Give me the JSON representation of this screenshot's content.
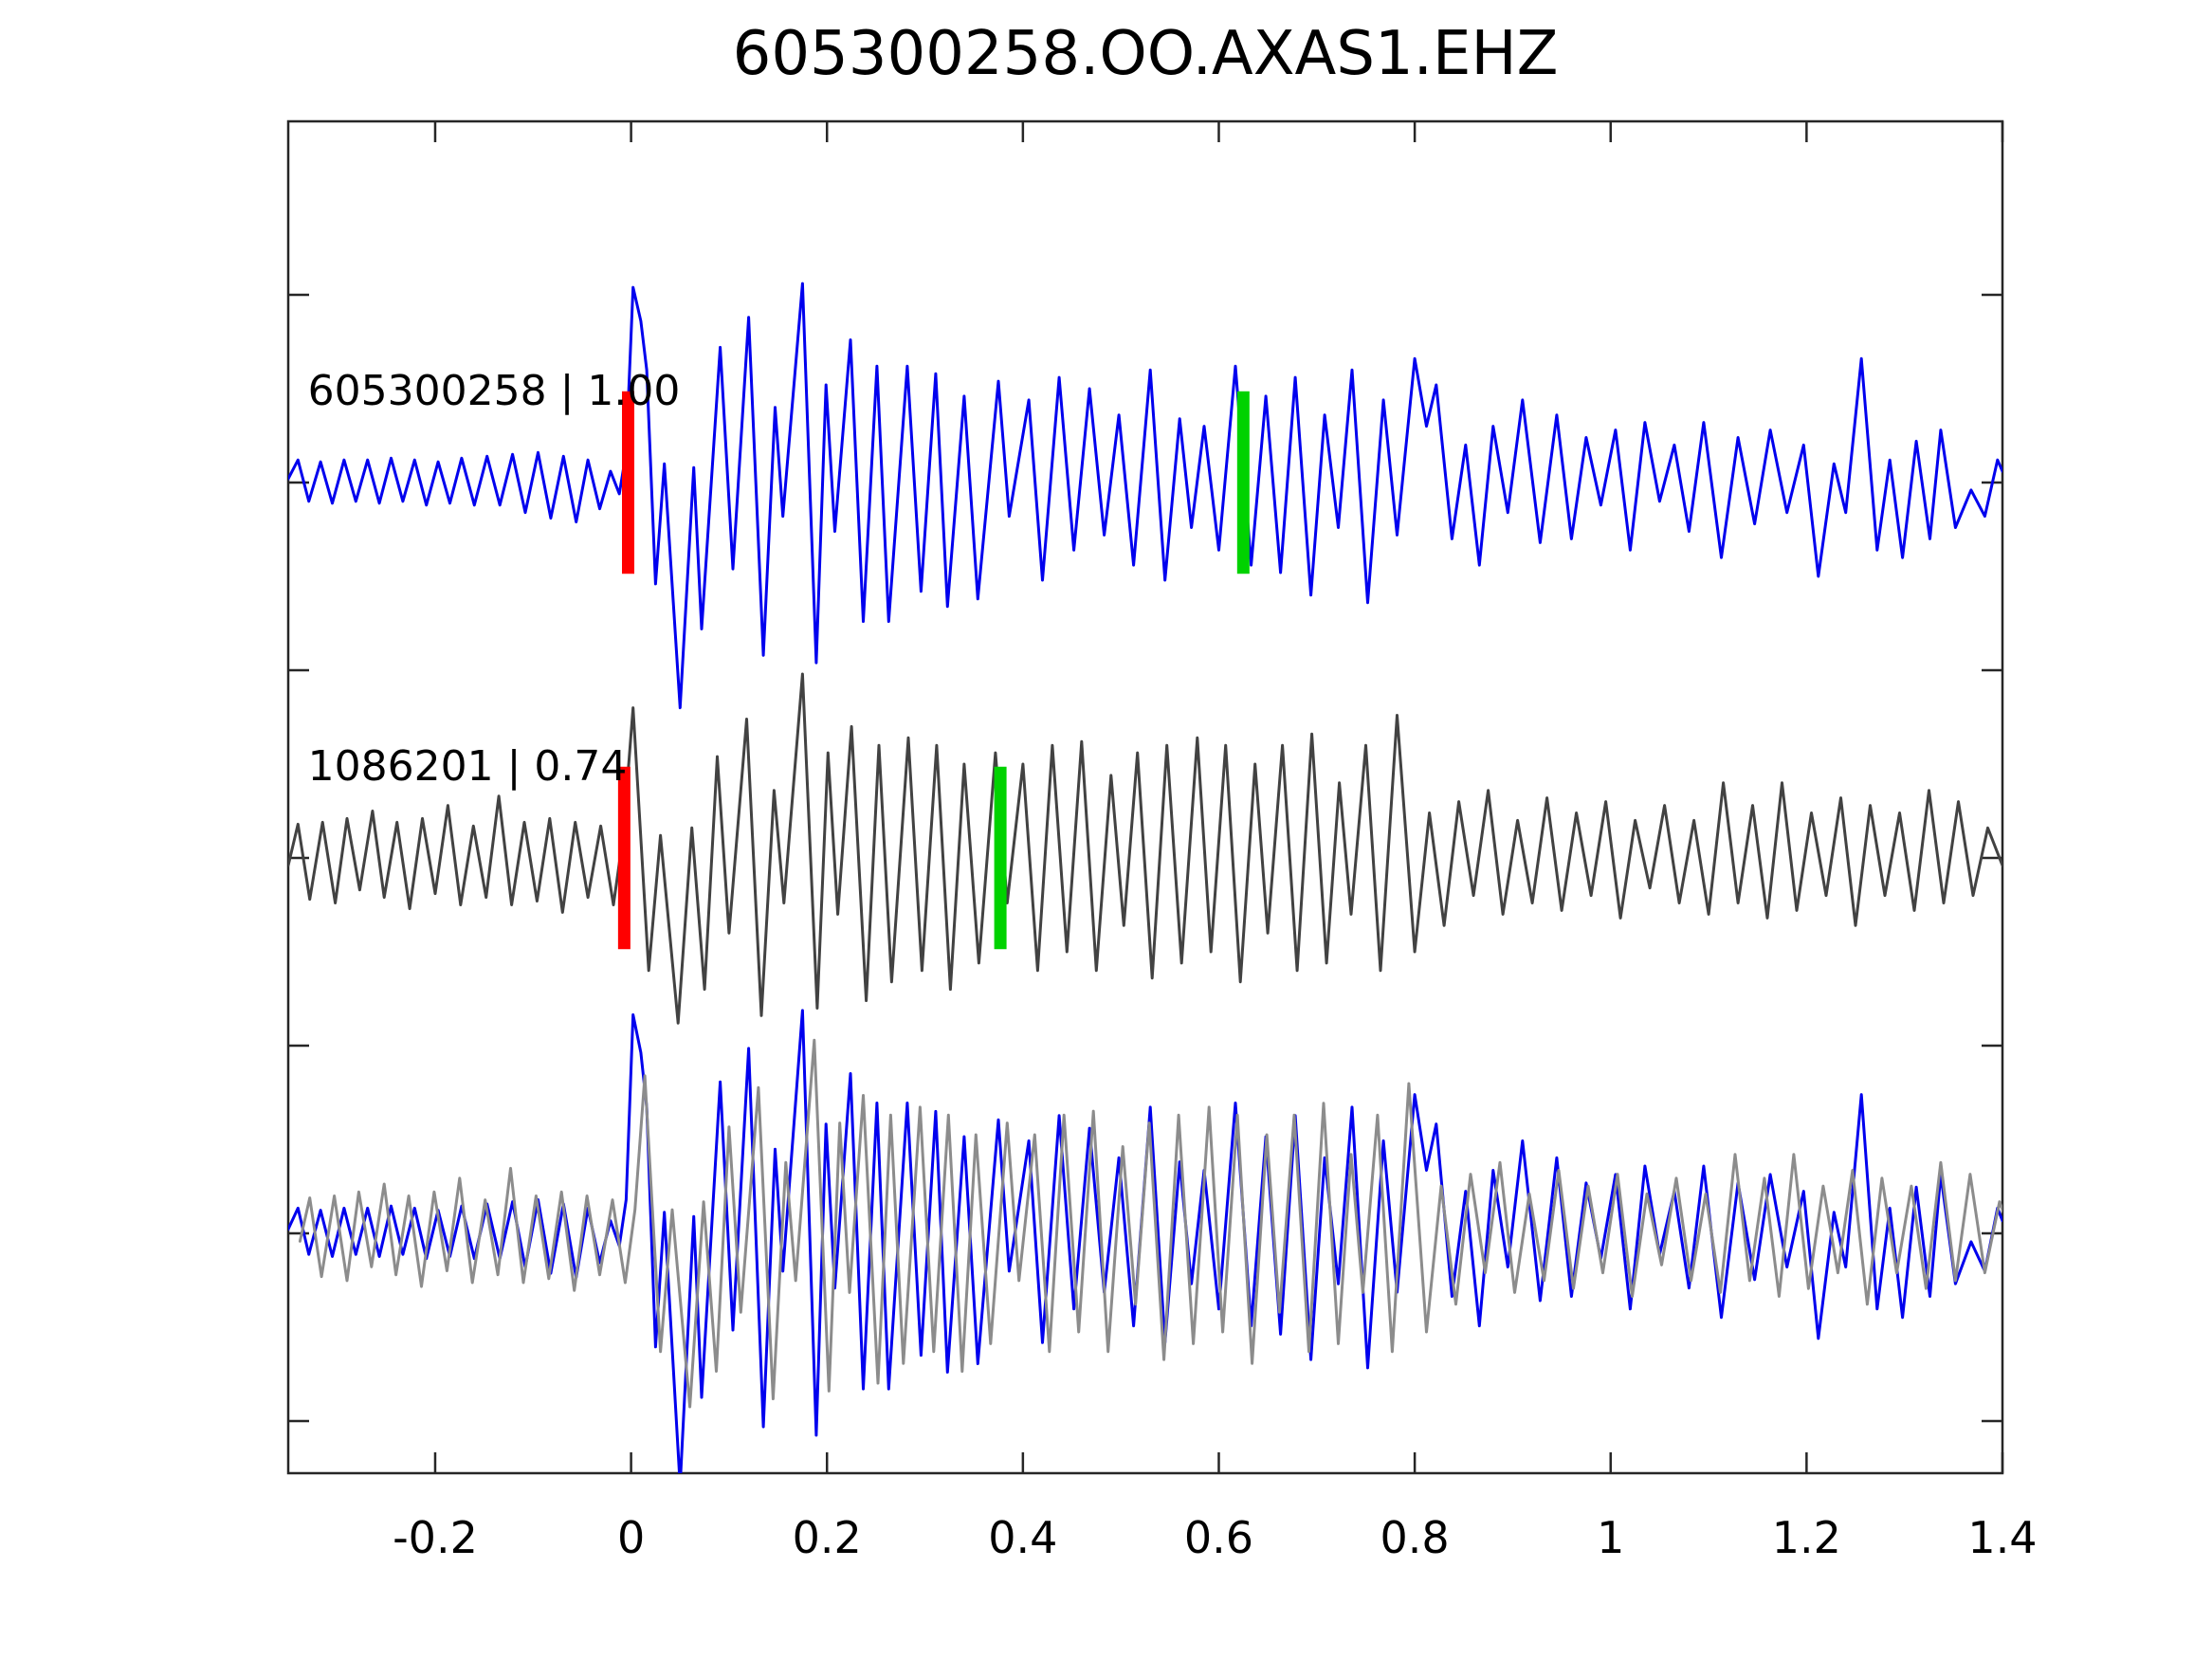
{
  "chart_data": {
    "type": "line",
    "title": "605300258.OO.AXAS1.EHZ",
    "xlabel": "",
    "ylabel": "",
    "x_range": [
      -0.35,
      1.4
    ],
    "grid": false,
    "legend_position": "none",
    "x_ticks": [
      -0.2,
      0,
      0.2,
      0.4,
      0.6,
      0.8,
      1.0,
      1.2,
      1.4
    ],
    "x_tick_labels": [
      "-0.2",
      "0",
      "0.2",
      "0.4",
      "0.6",
      "0.8",
      "1",
      "1.2",
      "1.4"
    ],
    "y_tick_values": [
      -0.5,
      0,
      0.5,
      1,
      1.5,
      2,
      2.5
    ],
    "colors": {
      "template_blue": "#0000ee",
      "detection_gray": "#424242",
      "overlay_gray": "#8c8c8c",
      "pick_red": "#ff0000",
      "pick_green": "#00d200",
      "spine": "#262626",
      "text": "#000000"
    },
    "traces": [
      {
        "name": "template",
        "label": "605300258 | 1.00",
        "row": 0,
        "color_key": "template_blue",
        "points": [
          [
            -0.35,
            0.01
          ],
          [
            -0.34,
            0.06
          ],
          [
            -0.329,
            -0.05
          ],
          [
            -0.317,
            0.055
          ],
          [
            -0.305,
            -0.055
          ],
          [
            -0.293,
            0.06
          ],
          [
            -0.281,
            -0.05
          ],
          [
            -0.269,
            0.06
          ],
          [
            -0.257,
            -0.055
          ],
          [
            -0.245,
            0.065
          ],
          [
            -0.233,
            -0.05
          ],
          [
            -0.221,
            0.06
          ],
          [
            -0.209,
            -0.06
          ],
          [
            -0.197,
            0.055
          ],
          [
            -0.185,
            -0.055
          ],
          [
            -0.173,
            0.065
          ],
          [
            -0.16,
            -0.06
          ],
          [
            -0.147,
            0.07
          ],
          [
            -0.134,
            -0.06
          ],
          [
            -0.121,
            0.075
          ],
          [
            -0.108,
            -0.08
          ],
          [
            -0.095,
            0.08
          ],
          [
            -0.082,
            -0.095
          ],
          [
            -0.069,
            0.07
          ],
          [
            -0.056,
            -0.105
          ],
          [
            -0.044,
            0.06
          ],
          [
            -0.032,
            -0.07
          ],
          [
            -0.021,
            0.03
          ],
          [
            -0.012,
            -0.03
          ],
          [
            -0.005,
            0.08
          ],
          [
            0.002,
            0.52
          ],
          [
            0.01,
            0.43
          ],
          [
            0.016,
            0.3
          ],
          [
            0.025,
            -0.27
          ],
          [
            0.034,
            0.05
          ],
          [
            0.05,
            -0.6
          ],
          [
            0.064,
            0.04
          ],
          [
            0.072,
            -0.39
          ],
          [
            0.091,
            0.36
          ],
          [
            0.104,
            -0.23
          ],
          [
            0.12,
            0.44
          ],
          [
            0.135,
            -0.46
          ],
          [
            0.147,
            0.2
          ],
          [
            0.155,
            -0.09
          ],
          [
            0.175,
            0.53
          ],
          [
            0.189,
            -0.48
          ],
          [
            0.199,
            0.26
          ],
          [
            0.208,
            -0.13
          ],
          [
            0.224,
            0.38
          ],
          [
            0.237,
            -0.37
          ],
          [
            0.251,
            0.31
          ],
          [
            0.263,
            -0.37
          ],
          [
            0.282,
            0.31
          ],
          [
            0.296,
            -0.29
          ],
          [
            0.311,
            0.29
          ],
          [
            0.323,
            -0.33
          ],
          [
            0.34,
            0.23
          ],
          [
            0.354,
            -0.31
          ],
          [
            0.375,
            0.27
          ],
          [
            0.386,
            -0.09
          ],
          [
            0.406,
            0.22
          ],
          [
            0.42,
            -0.26
          ],
          [
            0.437,
            0.28
          ],
          [
            0.452,
            -0.18
          ],
          [
            0.468,
            0.25
          ],
          [
            0.483,
            -0.14
          ],
          [
            0.498,
            0.18
          ],
          [
            0.513,
            -0.22
          ],
          [
            0.53,
            0.3
          ],
          [
            0.545,
            -0.26
          ],
          [
            0.56,
            0.17
          ],
          [
            0.572,
            -0.12
          ],
          [
            0.585,
            0.15
          ],
          [
            0.6,
            -0.18
          ],
          [
            0.617,
            0.31
          ],
          [
            0.633,
            -0.22
          ],
          [
            0.648,
            0.23
          ],
          [
            0.663,
            -0.24
          ],
          [
            0.678,
            0.28
          ],
          [
            0.694,
            -0.3
          ],
          [
            0.708,
            0.18
          ],
          [
            0.722,
            -0.12
          ],
          [
            0.736,
            0.3
          ],
          [
            0.752,
            -0.32
          ],
          [
            0.768,
            0.22
          ],
          [
            0.782,
            -0.14
          ],
          [
            0.8,
            0.33
          ],
          [
            0.812,
            0.15
          ],
          [
            0.822,
            0.26
          ],
          [
            0.838,
            -0.15
          ],
          [
            0.852,
            0.1
          ],
          [
            0.866,
            -0.22
          ],
          [
            0.88,
            0.15
          ],
          [
            0.895,
            -0.08
          ],
          [
            0.91,
            0.22
          ],
          [
            0.928,
            -0.16
          ],
          [
            0.945,
            0.18
          ],
          [
            0.96,
            -0.15
          ],
          [
            0.975,
            0.12
          ],
          [
            0.99,
            -0.06
          ],
          [
            1.005,
            0.14
          ],
          [
            1.02,
            -0.18
          ],
          [
            1.035,
            0.16
          ],
          [
            1.05,
            -0.05
          ],
          [
            1.065,
            0.1
          ],
          [
            1.08,
            -0.13
          ],
          [
            1.095,
            0.16
          ],
          [
            1.113,
            -0.2
          ],
          [
            1.13,
            0.12
          ],
          [
            1.147,
            -0.11
          ],
          [
            1.163,
            0.14
          ],
          [
            1.18,
            -0.08
          ],
          [
            1.197,
            0.1
          ],
          [
            1.212,
            -0.25
          ],
          [
            1.228,
            0.05
          ],
          [
            1.24,
            -0.08
          ],
          [
            1.256,
            0.33
          ],
          [
            1.272,
            -0.18
          ],
          [
            1.285,
            0.06
          ],
          [
            1.298,
            -0.2
          ],
          [
            1.312,
            0.11
          ],
          [
            1.326,
            -0.15
          ],
          [
            1.337,
            0.14
          ],
          [
            1.352,
            -0.12
          ],
          [
            1.368,
            -0.02
          ],
          [
            1.382,
            -0.09
          ],
          [
            1.395,
            0.06
          ],
          [
            1.4,
            0.03
          ]
        ]
      },
      {
        "name": "detection",
        "label": "1086201 | 0.74",
        "row": 1,
        "color_key": "detection_gray",
        "points": [
          [
            -0.35,
            -0.02
          ],
          [
            -0.34,
            0.09
          ],
          [
            -0.328,
            -0.11
          ],
          [
            -0.315,
            0.095
          ],
          [
            -0.302,
            -0.12
          ],
          [
            -0.29,
            0.105
          ],
          [
            -0.277,
            -0.085
          ],
          [
            -0.264,
            0.125
          ],
          [
            -0.252,
            -0.105
          ],
          [
            -0.239,
            0.095
          ],
          [
            -0.226,
            -0.135
          ],
          [
            -0.213,
            0.105
          ],
          [
            -0.2,
            -0.095
          ],
          [
            -0.187,
            0.14
          ],
          [
            -0.174,
            -0.125
          ],
          [
            -0.161,
            0.085
          ],
          [
            -0.148,
            -0.105
          ],
          [
            -0.135,
            0.165
          ],
          [
            -0.122,
            -0.125
          ],
          [
            -0.109,
            0.095
          ],
          [
            -0.096,
            -0.115
          ],
          [
            -0.083,
            0.105
          ],
          [
            -0.07,
            -0.145
          ],
          [
            -0.057,
            0.095
          ],
          [
            -0.044,
            -0.105
          ],
          [
            -0.031,
            0.085
          ],
          [
            -0.018,
            -0.125
          ],
          [
            -0.008,
            0.06
          ],
          [
            0.002,
            0.4
          ],
          [
            0.018,
            -0.3
          ],
          [
            0.03,
            0.06
          ],
          [
            0.048,
            -0.44
          ],
          [
            0.062,
            0.08
          ],
          [
            0.075,
            -0.35
          ],
          [
            0.088,
            0.27
          ],
          [
            0.1,
            -0.2
          ],
          [
            0.118,
            0.37
          ],
          [
            0.133,
            -0.42
          ],
          [
            0.146,
            0.18
          ],
          [
            0.156,
            -0.12
          ],
          [
            0.175,
            0.49
          ],
          [
            0.19,
            -0.4
          ],
          [
            0.201,
            0.28
          ],
          [
            0.211,
            -0.15
          ],
          [
            0.225,
            0.35
          ],
          [
            0.24,
            -0.38
          ],
          [
            0.253,
            0.3
          ],
          [
            0.266,
            -0.33
          ],
          [
            0.283,
            0.32
          ],
          [
            0.297,
            -0.3
          ],
          [
            0.312,
            0.3
          ],
          [
            0.326,
            -0.35
          ],
          [
            0.34,
            0.25
          ],
          [
            0.355,
            -0.28
          ],
          [
            0.372,
            0.28
          ],
          [
            0.384,
            -0.12
          ],
          [
            0.4,
            0.25
          ],
          [
            0.415,
            -0.3
          ],
          [
            0.43,
            0.3
          ],
          [
            0.445,
            -0.25
          ],
          [
            0.46,
            0.31
          ],
          [
            0.475,
            -0.3
          ],
          [
            0.49,
            0.22
          ],
          [
            0.503,
            -0.18
          ],
          [
            0.517,
            0.28
          ],
          [
            0.532,
            -0.32
          ],
          [
            0.547,
            0.3
          ],
          [
            0.562,
            -0.28
          ],
          [
            0.578,
            0.32
          ],
          [
            0.592,
            -0.25
          ],
          [
            0.607,
            0.3
          ],
          [
            0.622,
            -0.33
          ],
          [
            0.637,
            0.25
          ],
          [
            0.65,
            -0.2
          ],
          [
            0.665,
            0.3
          ],
          [
            0.68,
            -0.3
          ],
          [
            0.695,
            0.33
          ],
          [
            0.71,
            -0.28
          ],
          [
            0.723,
            0.2
          ],
          [
            0.735,
            -0.15
          ],
          [
            0.75,
            0.3
          ],
          [
            0.765,
            -0.3
          ],
          [
            0.782,
            0.38
          ],
          [
            0.8,
            -0.25
          ],
          [
            0.815,
            0.12
          ],
          [
            0.83,
            -0.18
          ],
          [
            0.845,
            0.15
          ],
          [
            0.86,
            -0.1
          ],
          [
            0.875,
            0.18
          ],
          [
            0.89,
            -0.15
          ],
          [
            0.905,
            0.1
          ],
          [
            0.92,
            -0.12
          ],
          [
            0.935,
            0.16
          ],
          [
            0.95,
            -0.14
          ],
          [
            0.965,
            0.12
          ],
          [
            0.98,
            -0.1
          ],
          [
            0.995,
            0.15
          ],
          [
            1.01,
            -0.16
          ],
          [
            1.025,
            0.1
          ],
          [
            1.04,
            -0.08
          ],
          [
            1.055,
            0.14
          ],
          [
            1.07,
            -0.12
          ],
          [
            1.085,
            0.1
          ],
          [
            1.1,
            -0.15
          ],
          [
            1.115,
            0.2
          ],
          [
            1.13,
            -0.12
          ],
          [
            1.145,
            0.14
          ],
          [
            1.16,
            -0.16
          ],
          [
            1.175,
            0.2
          ],
          [
            1.19,
            -0.14
          ],
          [
            1.205,
            0.12
          ],
          [
            1.22,
            -0.1
          ],
          [
            1.235,
            0.16
          ],
          [
            1.25,
            -0.18
          ],
          [
            1.265,
            0.14
          ],
          [
            1.28,
            -0.1
          ],
          [
            1.295,
            0.12
          ],
          [
            1.31,
            -0.14
          ],
          [
            1.325,
            0.18
          ],
          [
            1.34,
            -0.12
          ],
          [
            1.355,
            0.15
          ],
          [
            1.37,
            -0.1
          ],
          [
            1.385,
            0.08
          ],
          [
            1.4,
            -0.02
          ]
        ]
      },
      {
        "name": "overlay-template",
        "label": "",
        "row": 2,
        "color_key": "template_blue",
        "ref": "template",
        "amp_scale": 1.12,
        "t_shift": 0
      },
      {
        "name": "overlay-detection",
        "label": "",
        "row": 2,
        "color_key": "overlay_gray",
        "ref": "detection",
        "amp_scale": 1.05,
        "t_shift": 0.012
      }
    ],
    "markers": [
      {
        "name": "template-pick-red",
        "row": 0,
        "t": -0.003,
        "color_key": "pick_red"
      },
      {
        "name": "template-pick-green",
        "row": 0,
        "t": 0.625,
        "color_key": "pick_green"
      },
      {
        "name": "detection-pick-red",
        "row": 1,
        "t": -0.007,
        "color_key": "pick_red"
      },
      {
        "name": "detection-pick-green",
        "row": 1,
        "t": 0.377,
        "color_key": "pick_green"
      }
    ]
  }
}
